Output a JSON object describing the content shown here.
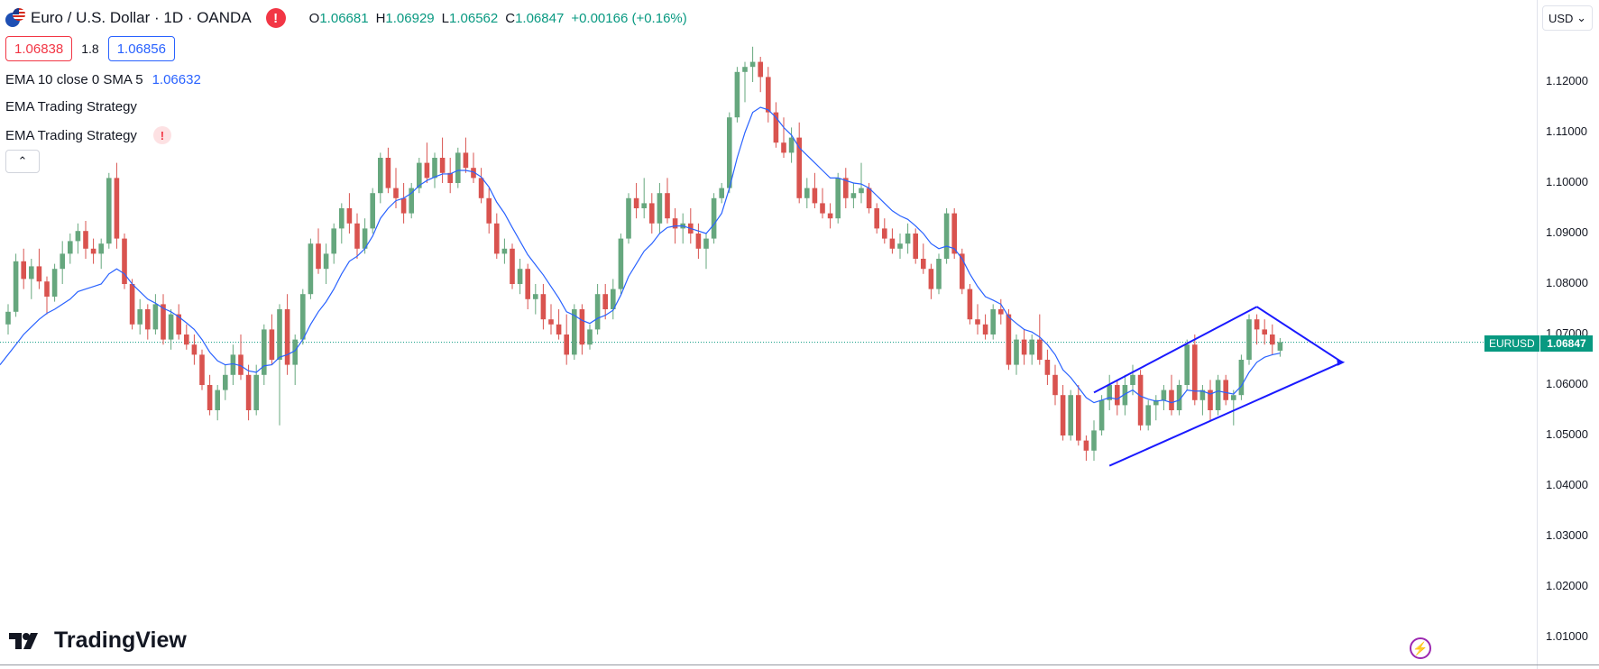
{
  "header": {
    "symbol_title": "Euro / U.S. Dollar · 1D · OANDA",
    "alert_glyph": "!",
    "ohlc": {
      "o_label": "O",
      "o_value": "1.06681",
      "h_label": "H",
      "h_value": "1.06929",
      "l_label": "L",
      "l_value": "1.06562",
      "c_label": "C",
      "c_value": "1.06847",
      "change": "+0.00166 (+0.16%)"
    }
  },
  "trade_panel": {
    "sell_price": "1.06838",
    "spread": "1.8",
    "buy_price": "1.06856"
  },
  "indicators": [
    {
      "label": "EMA 10 close 0 SMA 5",
      "value": "1.06632"
    },
    {
      "label": "EMA Trading Strategy"
    },
    {
      "label": "EMA Trading Strategy",
      "alert": "!"
    }
  ],
  "collapse_glyph": "⌃",
  "currency_selector": {
    "value": "USD",
    "chevron": "⌄"
  },
  "price_axis": {
    "ticks": [
      "1.12000",
      "1.11000",
      "1.10000",
      "1.09000",
      "1.08000",
      "1.07000",
      "1.06000",
      "1.05000",
      "1.04000",
      "1.03000",
      "1.02000",
      "1.01000"
    ],
    "symbol_label": "EURUSD",
    "last_price": "1.06847"
  },
  "colors": {
    "up": "#089981",
    "up_body": "#66a77e",
    "down": "#d9534f",
    "ema_line": "#2962ff",
    "channel": "#1a1aff",
    "last_price_line": "#089981",
    "background": "#ffffff"
  },
  "branding": {
    "name": "TradingView"
  },
  "chart_data": {
    "type": "candlestick",
    "timeframe": "1D",
    "ylim": [
      1.005,
      1.13
    ],
    "grid": false,
    "candles": [
      [
        1.072,
        1.076,
        1.07,
        1.0745
      ],
      [
        1.0745,
        1.086,
        1.0735,
        1.0845
      ],
      [
        1.0845,
        1.087,
        1.079,
        1.081
      ],
      [
        1.081,
        1.085,
        1.077,
        1.0835
      ],
      [
        1.0835,
        1.087,
        1.079,
        1.0805
      ],
      [
        1.0805,
        1.0815,
        1.074,
        1.0775
      ],
      [
        1.0775,
        1.084,
        1.0765,
        1.083
      ],
      [
        1.083,
        1.0885,
        1.08,
        1.086
      ],
      [
        1.086,
        1.09,
        1.084,
        1.0885
      ],
      [
        1.0885,
        1.092,
        1.086,
        1.0905
      ],
      [
        1.0905,
        1.0925,
        1.085,
        1.087
      ],
      [
        1.087,
        1.089,
        1.084,
        1.086
      ],
      [
        1.086,
        1.089,
        1.083,
        1.088
      ],
      [
        1.088,
        1.102,
        1.087,
        1.101
      ],
      [
        1.101,
        1.104,
        1.087,
        1.089
      ],
      [
        1.089,
        1.09,
        1.079,
        1.08
      ],
      [
        1.08,
        1.081,
        1.071,
        1.072
      ],
      [
        1.072,
        1.077,
        1.07,
        1.075
      ],
      [
        1.075,
        1.076,
        1.069,
        1.071
      ],
      [
        1.071,
        1.078,
        1.07,
        1.076
      ],
      [
        1.076,
        1.078,
        1.068,
        1.069
      ],
      [
        1.069,
        1.075,
        1.067,
        1.074
      ],
      [
        1.074,
        1.076,
        1.069,
        1.07
      ],
      [
        1.07,
        1.072,
        1.067,
        1.068
      ],
      [
        1.068,
        1.07,
        1.064,
        1.066
      ],
      [
        1.066,
        1.067,
        1.059,
        1.06
      ],
      [
        1.06,
        1.062,
        1.054,
        1.055
      ],
      [
        1.055,
        1.06,
        1.053,
        1.059
      ],
      [
        1.059,
        1.064,
        1.057,
        1.062
      ],
      [
        1.062,
        1.068,
        1.06,
        1.066
      ],
      [
        1.066,
        1.07,
        1.061,
        1.062
      ],
      [
        1.062,
        1.064,
        1.053,
        1.055
      ],
      [
        1.055,
        1.064,
        1.054,
        1.062
      ],
      [
        1.062,
        1.072,
        1.06,
        1.071
      ],
      [
        1.071,
        1.074,
        1.064,
        1.065
      ],
      [
        1.065,
        1.076,
        1.052,
        1.075
      ],
      [
        1.075,
        1.078,
        1.062,
        1.064
      ],
      [
        1.064,
        1.07,
        1.06,
        1.069
      ],
      [
        1.069,
        1.079,
        1.068,
        1.078
      ],
      [
        1.078,
        1.089,
        1.077,
        1.088
      ],
      [
        1.088,
        1.091,
        1.082,
        1.083
      ],
      [
        1.083,
        1.088,
        1.08,
        1.086
      ],
      [
        1.086,
        1.092,
        1.084,
        1.091
      ],
      [
        1.091,
        1.096,
        1.088,
        1.095
      ],
      [
        1.095,
        1.098,
        1.09,
        1.092
      ],
      [
        1.092,
        1.094,
        1.085,
        1.087
      ],
      [
        1.087,
        1.093,
        1.086,
        1.091
      ],
      [
        1.091,
        1.099,
        1.09,
        1.098
      ],
      [
        1.098,
        1.106,
        1.096,
        1.105
      ],
      [
        1.105,
        1.107,
        1.098,
        1.099
      ],
      [
        1.099,
        1.103,
        1.095,
        1.097
      ],
      [
        1.097,
        1.1,
        1.092,
        1.094
      ],
      [
        1.094,
        1.1,
        1.093,
        1.099
      ],
      [
        1.099,
        1.105,
        1.098,
        1.104
      ],
      [
        1.104,
        1.108,
        1.1,
        1.101
      ],
      [
        1.101,
        1.106,
        1.099,
        1.105
      ],
      [
        1.105,
        1.109,
        1.1,
        1.102
      ],
      [
        1.102,
        1.105,
        1.098,
        1.1
      ],
      [
        1.1,
        1.107,
        1.099,
        1.106
      ],
      [
        1.106,
        1.109,
        1.102,
        1.103
      ],
      [
        1.103,
        1.106,
        1.1,
        1.101
      ],
      [
        1.101,
        1.103,
        1.096,
        1.097
      ],
      [
        1.097,
        1.099,
        1.09,
        1.092
      ],
      [
        1.092,
        1.094,
        1.085,
        1.086
      ],
      [
        1.086,
        1.089,
        1.084,
        1.087
      ],
      [
        1.087,
        1.088,
        1.079,
        1.08
      ],
      [
        1.08,
        1.085,
        1.078,
        1.083
      ],
      [
        1.083,
        1.084,
        1.075,
        1.077
      ],
      [
        1.077,
        1.08,
        1.074,
        1.078
      ],
      [
        1.078,
        1.08,
        1.071,
        1.073
      ],
      [
        1.073,
        1.076,
        1.07,
        1.072
      ],
      [
        1.072,
        1.075,
        1.069,
        1.07
      ],
      [
        1.07,
        1.074,
        1.064,
        1.066
      ],
      [
        1.066,
        1.076,
        1.065,
        1.075
      ],
      [
        1.075,
        1.076,
        1.066,
        1.068
      ],
      [
        1.068,
        1.072,
        1.067,
        1.071
      ],
      [
        1.071,
        1.08,
        1.07,
        1.078
      ],
      [
        1.078,
        1.08,
        1.073,
        1.075
      ],
      [
        1.075,
        1.081,
        1.073,
        1.079
      ],
      [
        1.079,
        1.09,
        1.078,
        1.089
      ],
      [
        1.089,
        1.098,
        1.088,
        1.097
      ],
      [
        1.097,
        1.1,
        1.093,
        1.095
      ],
      [
        1.095,
        1.101,
        1.093,
        1.096
      ],
      [
        1.096,
        1.098,
        1.09,
        1.092
      ],
      [
        1.092,
        1.1,
        1.09,
        1.098
      ],
      [
        1.098,
        1.101,
        1.092,
        1.093
      ],
      [
        1.093,
        1.095,
        1.088,
        1.091
      ],
      [
        1.091,
        1.094,
        1.088,
        1.092
      ],
      [
        1.092,
        1.095,
        1.088,
        1.09
      ],
      [
        1.09,
        1.092,
        1.085,
        1.087
      ],
      [
        1.087,
        1.09,
        1.083,
        1.089
      ],
      [
        1.089,
        1.098,
        1.088,
        1.097
      ],
      [
        1.097,
        1.1,
        1.096,
        1.099
      ],
      [
        1.099,
        1.114,
        1.098,
        1.113
      ],
      [
        1.113,
        1.123,
        1.112,
        1.122
      ],
      [
        1.122,
        1.124,
        1.116,
        1.123
      ],
      [
        1.123,
        1.127,
        1.12,
        1.124
      ],
      [
        1.124,
        1.125,
        1.118,
        1.121
      ],
      [
        1.121,
        1.123,
        1.112,
        1.114
      ],
      [
        1.114,
        1.116,
        1.107,
        1.108
      ],
      [
        1.108,
        1.113,
        1.105,
        1.106
      ],
      [
        1.106,
        1.111,
        1.104,
        1.109
      ],
      [
        1.109,
        1.112,
        1.096,
        1.097
      ],
      [
        1.097,
        1.101,
        1.095,
        1.099
      ],
      [
        1.099,
        1.102,
        1.095,
        1.096
      ],
      [
        1.096,
        1.099,
        1.093,
        1.094
      ],
      [
        1.094,
        1.096,
        1.091,
        1.093
      ],
      [
        1.093,
        1.102,
        1.092,
        1.101
      ],
      [
        1.101,
        1.103,
        1.095,
        1.097
      ],
      [
        1.097,
        1.1,
        1.095,
        1.098
      ],
      [
        1.098,
        1.104,
        1.096,
        1.099
      ],
      [
        1.099,
        1.1,
        1.094,
        1.095
      ],
      [
        1.095,
        1.096,
        1.09,
        1.091
      ],
      [
        1.091,
        1.093,
        1.088,
        1.089
      ],
      [
        1.089,
        1.091,
        1.086,
        1.087
      ],
      [
        1.087,
        1.09,
        1.085,
        1.088
      ],
      [
        1.088,
        1.092,
        1.086,
        1.09
      ],
      [
        1.09,
        1.091,
        1.084,
        1.085
      ],
      [
        1.085,
        1.088,
        1.082,
        1.083
      ],
      [
        1.083,
        1.084,
        1.077,
        1.079
      ],
      [
        1.079,
        1.086,
        1.078,
        1.085
      ],
      [
        1.085,
        1.095,
        1.084,
        1.094
      ],
      [
        1.094,
        1.095,
        1.085,
        1.086
      ],
      [
        1.086,
        1.087,
        1.078,
        1.079
      ],
      [
        1.079,
        1.08,
        1.072,
        1.073
      ],
      [
        1.073,
        1.076,
        1.07,
        1.072
      ],
      [
        1.072,
        1.074,
        1.069,
        1.07
      ],
      [
        1.07,
        1.076,
        1.069,
        1.075
      ],
      [
        1.075,
        1.077,
        1.072,
        1.074
      ],
      [
        1.074,
        1.075,
        1.063,
        1.064
      ],
      [
        1.064,
        1.07,
        1.062,
        1.069
      ],
      [
        1.069,
        1.071,
        1.064,
        1.066
      ],
      [
        1.066,
        1.07,
        1.064,
        1.069
      ],
      [
        1.069,
        1.074,
        1.064,
        1.065
      ],
      [
        1.065,
        1.067,
        1.06,
        1.062
      ],
      [
        1.062,
        1.064,
        1.056,
        1.058
      ],
      [
        1.058,
        1.06,
        1.049,
        1.05
      ],
      [
        1.05,
        1.059,
        1.049,
        1.058
      ],
      [
        1.058,
        1.06,
        1.048,
        1.049
      ],
      [
        1.049,
        1.05,
        1.045,
        1.047
      ],
      [
        1.047,
        1.053,
        1.045,
        1.051
      ],
      [
        1.051,
        1.058,
        1.05,
        1.057
      ],
      [
        1.057,
        1.062,
        1.055,
        1.06
      ],
      [
        1.06,
        1.061,
        1.054,
        1.056
      ],
      [
        1.056,
        1.062,
        1.054,
        1.06
      ],
      [
        1.06,
        1.064,
        1.058,
        1.062
      ],
      [
        1.062,
        1.063,
        1.051,
        1.052
      ],
      [
        1.052,
        1.057,
        1.051,
        1.056
      ],
      [
        1.056,
        1.058,
        1.053,
        1.057
      ],
      [
        1.057,
        1.06,
        1.055,
        1.059
      ],
      [
        1.059,
        1.062,
        1.054,
        1.055
      ],
      [
        1.055,
        1.061,
        1.054,
        1.06
      ],
      [
        1.06,
        1.069,
        1.059,
        1.068
      ],
      [
        1.068,
        1.07,
        1.056,
        1.057
      ],
      [
        1.057,
        1.06,
        1.054,
        1.059
      ],
      [
        1.059,
        1.061,
        1.053,
        1.055
      ],
      [
        1.055,
        1.062,
        1.054,
        1.061
      ],
      [
        1.061,
        1.062,
        1.056,
        1.057
      ],
      [
        1.057,
        1.059,
        1.052,
        1.058
      ],
      [
        1.058,
        1.066,
        1.057,
        1.065
      ],
      [
        1.065,
        1.074,
        1.064,
        1.073
      ],
      [
        1.073,
        1.074,
        1.068,
        1.071
      ],
      [
        1.071,
        1.073,
        1.068,
        1.07
      ],
      [
        1.07,
        1.072,
        1.066,
        1.068
      ],
      [
        1.0668,
        1.0693,
        1.0656,
        1.0685
      ]
    ],
    "ema_line": [
      1.064,
      1.068,
      1.07,
      1.0715,
      1.073,
      1.0742,
      1.075,
      1.076,
      1.077,
      1.0785,
      1.079,
      1.0795,
      1.08,
      1.082,
      1.083,
      1.082,
      1.08,
      1.0785,
      1.077,
      1.0762,
      1.0752,
      1.0745,
      1.0735,
      1.0723,
      1.071,
      1.069,
      1.0665,
      1.0648,
      1.064,
      1.0642,
      1.0638,
      1.0628,
      1.0625,
      1.0638,
      1.064,
      1.0655,
      1.066,
      1.0668,
      1.069,
      1.072,
      1.0745,
      1.0765,
      1.079,
      1.082,
      1.0845,
      1.0855,
      1.087,
      1.0895,
      1.093,
      1.095,
      1.0965,
      1.097,
      1.098,
      1.0995,
      1.1005,
      1.1012,
      1.1018,
      1.1018,
      1.1025,
      1.1025,
      1.1022,
      1.1012,
      1.0992,
      1.0962,
      1.094,
      1.0912,
      1.0885,
      1.0858,
      1.0838,
      1.0818,
      1.0795,
      1.0772,
      1.0745,
      1.0738,
      1.0728,
      1.0722,
      1.0732,
      1.0738,
      1.0748,
      1.0778,
      1.0815,
      1.084,
      1.0865,
      1.088,
      1.09,
      1.0912,
      1.0915,
      1.0915,
      1.091,
      1.0905,
      1.09,
      1.0918,
      1.094,
      1.099,
      1.105,
      1.11,
      1.114,
      1.115,
      1.1145,
      1.113,
      1.111,
      1.1095,
      1.107,
      1.1055,
      1.104,
      1.1025,
      1.101,
      1.101,
      1.1005,
      1.1,
      1.0998,
      1.099,
      1.0975,
      1.096,
      1.0945,
      1.0935,
      1.0928,
      1.0915,
      1.09,
      1.088,
      1.087,
      1.0875,
      1.087,
      1.085,
      1.082,
      1.0795,
      1.0775,
      1.0768,
      1.076,
      1.0735,
      1.0722,
      1.071,
      1.0705,
      1.0695,
      1.068,
      1.066,
      1.063,
      1.0615,
      1.0595,
      1.0575,
      1.0565,
      1.057,
      1.0575,
      1.0572,
      1.0582,
      1.059,
      1.0578,
      1.0572,
      1.0568,
      1.057,
      1.0565,
      1.057,
      1.059,
      1.0588,
      1.0588,
      1.0582,
      1.0588,
      1.0585,
      1.0582,
      1.0598,
      1.0625,
      1.0645,
      1.0655,
      1.066,
      1.0663
    ],
    "channel": {
      "upper": [
        {
          "candle": 140,
          "price": 1.0585
        },
        {
          "candle": 161,
          "price": 1.0755
        }
      ],
      "lower": [
        {
          "candle": 142,
          "price": 1.044
        },
        {
          "candle": 172,
          "price": 1.0645
        }
      ],
      "right_side": [
        {
          "candle": 161,
          "price": 1.0755
        },
        {
          "candle": 172,
          "price": 1.0645
        }
      ]
    },
    "last_price": 1.06847
  }
}
